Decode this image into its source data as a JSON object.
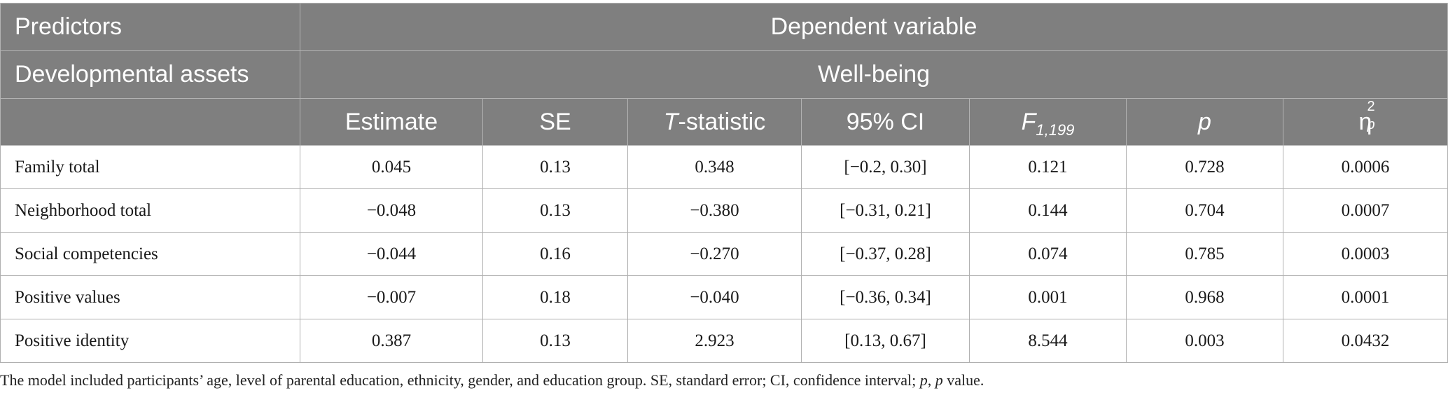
{
  "header": {
    "predictors": "Predictors",
    "dependent_variable": "Dependent variable",
    "developmental_assets": "Developmental assets",
    "well_being": "Well-being",
    "columns": {
      "estimate": "Estimate",
      "se": "SE",
      "t_stat_italic": "T",
      "t_stat_rest": "-statistic",
      "ci": "95% CI",
      "f_italic": "F",
      "f_sub": "1,199",
      "p": "p",
      "eta": "η",
      "eta_sup": "2",
      "eta_sub": "p"
    }
  },
  "rows": [
    {
      "label": "Family total",
      "estimate": "0.045",
      "se": "0.13",
      "t": "0.348",
      "ci": "[−0.2, 0.30]",
      "f": "0.121",
      "p": "0.728",
      "eta": "0.0006"
    },
    {
      "label": "Neighborhood total",
      "estimate": "−0.048",
      "se": "0.13",
      "t": "−0.380",
      "ci": "[−0.31, 0.21]",
      "f": "0.144",
      "p": "0.704",
      "eta": "0.0007"
    },
    {
      "label": "Social competencies",
      "estimate": "−0.044",
      "se": "0.16",
      "t": "−0.270",
      "ci": "[−0.37, 0.28]",
      "f": "0.074",
      "p": "0.785",
      "eta": "0.0003"
    },
    {
      "label": "Positive values",
      "estimate": "−0.007",
      "se": "0.18",
      "t": "−0.040",
      "ci": "[−0.36, 0.34]",
      "f": "0.001",
      "p": "0.968",
      "eta": "0.0001"
    },
    {
      "label": "Positive identity",
      "estimate": "0.387",
      "se": "0.13",
      "t": "2.923",
      "ci": "[0.13, 0.67]",
      "f": "8.544",
      "p": "0.003",
      "eta": "0.0432"
    }
  ],
  "footnote": {
    "part1": "The model included participants’ age, level of parental education, ethnicity, gender, and education group. SE, standard error; CI, confidence interval; ",
    "p1": "p",
    "comma": ", ",
    "p2": "p",
    "part2": " value."
  }
}
